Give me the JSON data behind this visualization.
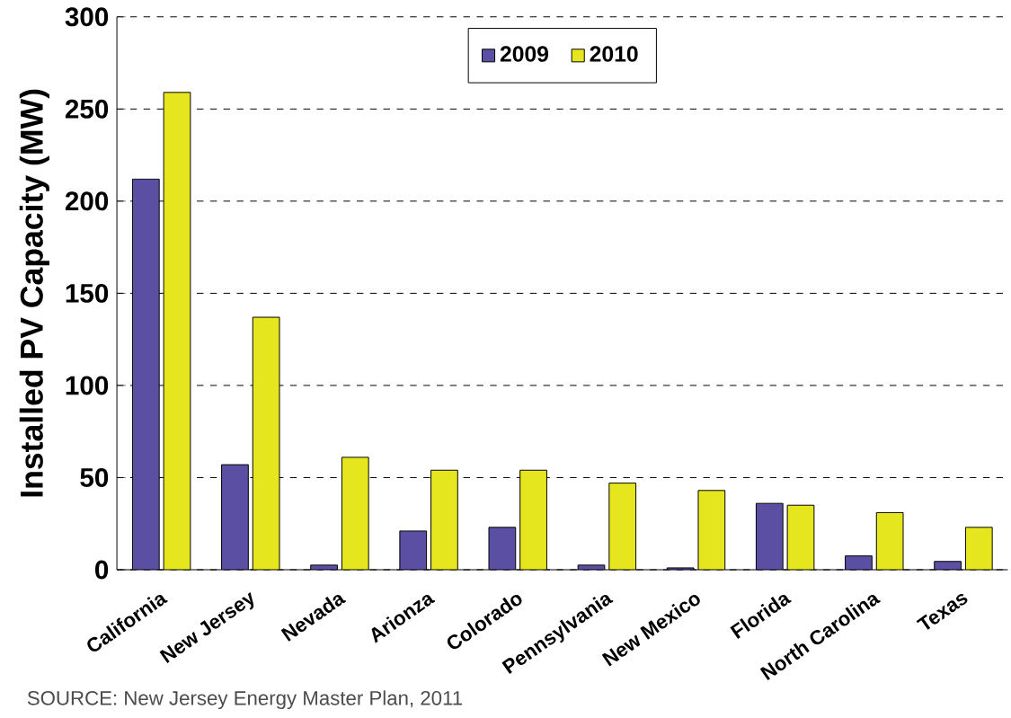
{
  "chart_data": {
    "type": "bar",
    "ylabel": "Installed PV Capacity (MW)",
    "categories": [
      "California",
      "New Jersey",
      "Nevada",
      "Arionza",
      "Colorado",
      "Pennsylvania",
      "New Mexico",
      "Florida",
      "North Carolina",
      "Texas"
    ],
    "series": [
      {
        "name": "2009",
        "color": "#5a4fa3",
        "values": [
          212,
          57,
          2.5,
          21,
          23,
          2.5,
          1,
          36,
          7.5,
          4.5
        ]
      },
      {
        "name": "2010",
        "color": "#e6e61e",
        "values": [
          259,
          137,
          61,
          54,
          54,
          47,
          43,
          35,
          31,
          23
        ]
      }
    ],
    "ylim": [
      0,
      300
    ],
    "yticks": [
      0,
      50,
      100,
      150,
      200,
      250,
      300
    ],
    "grid": "y",
    "legend": "top",
    "annotations": [
      "SOURCE: New Jersey Energy Master Plan, 2011"
    ]
  }
}
